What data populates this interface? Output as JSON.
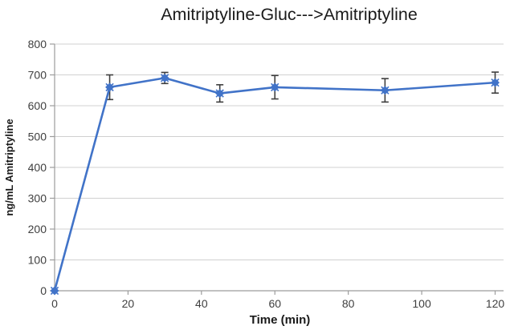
{
  "chart_data": {
    "type": "line",
    "title": "Amitriptyline-Gluc--->Amitriptyline",
    "xlabel": "Time (min)",
    "ylabel": "ng/mL Amitriptyline",
    "x": [
      0,
      15,
      30,
      45,
      60,
      90,
      120
    ],
    "series": [
      {
        "name": "Amitriptyline",
        "values": [
          0,
          660,
          690,
          640,
          660,
          650,
          675
        ],
        "error": [
          0,
          40,
          18,
          28,
          38,
          38,
          34
        ]
      }
    ],
    "xlim": [
      0,
      120
    ],
    "ylim": [
      0,
      800
    ],
    "xticks": [
      0,
      20,
      40,
      60,
      80,
      100,
      120
    ],
    "yticks": [
      0,
      100,
      200,
      300,
      400,
      500,
      600,
      700,
      800
    ],
    "grid": true,
    "legend": "none",
    "marker": "diamond-x",
    "colors": {
      "line": "#4173C8",
      "marker": "#4173C8",
      "error_bar": "#3F3F3F",
      "gridline": "#D0D0D0",
      "axis": "#9C9C9C",
      "tick_text": "#404040",
      "title_text": "#1A1A1A",
      "background": "#FFFFFF"
    }
  }
}
